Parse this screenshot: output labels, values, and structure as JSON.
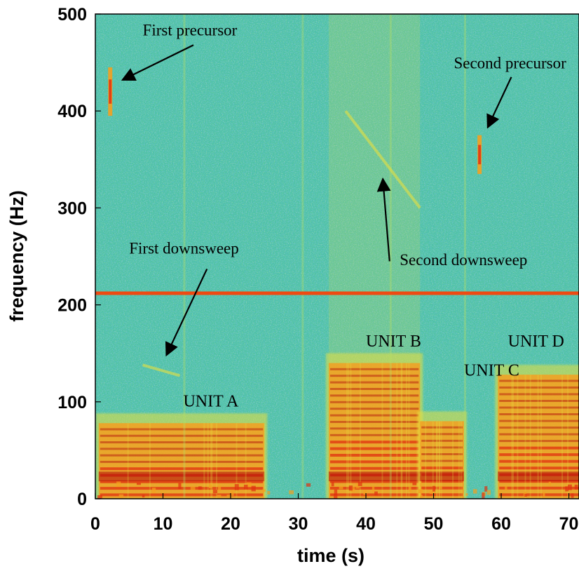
{
  "chart_data": {
    "type": "heatmap",
    "title": "",
    "xlabel": "time (s)",
    "ylabel": "frequency (Hz)",
    "xlim": [
      0,
      71.5
    ],
    "ylim": [
      0,
      500
    ],
    "xticks": [
      0,
      10,
      20,
      30,
      40,
      50,
      60,
      70
    ],
    "yticks": [
      0,
      100,
      200,
      300,
      400,
      500
    ],
    "xtick_labels": [
      "0",
      "10",
      "20",
      "30",
      "40",
      "50",
      "60",
      "70"
    ],
    "ytick_labels": [
      "0",
      "100",
      "200",
      "300",
      "400",
      "500"
    ],
    "grid": false,
    "colormap": "jet",
    "colors": {
      "background": "#4fc2a6",
      "noise_low": "#2f7fd0",
      "noise_mid": "#5ac8a0",
      "noise_high": "#b8e060",
      "energy_low": "#e8e040",
      "energy_mid": "#f4a020",
      "energy_high": "#e03010",
      "energy_peak": "#b00808",
      "tone_line": "#ee4a12"
    },
    "tone_line": {
      "frequency": 212
    },
    "units": [
      {
        "label": "UNIT A",
        "t_start": 0.5,
        "t_end": 25,
        "f_max": 78,
        "label_at": [
          13,
          95
        ]
      },
      {
        "label": "UNIT B",
        "t_start": 34.5,
        "t_end": 48,
        "f_max": 140,
        "label_at": [
          40,
          157
        ]
      },
      {
        "label": "UNIT C",
        "t_start": 48,
        "t_end": 54.5,
        "f_max": 80,
        "label_at": [
          54.5,
          127
        ]
      },
      {
        "label": "UNIT D",
        "t_start": 59.5,
        "t_end": 72,
        "f_max": 128,
        "label_at": [
          61,
          157
        ]
      }
    ],
    "annotations": [
      {
        "text": "First precursor",
        "text_at": [
          7,
          478
        ],
        "arrow_from": [
          14.5,
          468
        ],
        "arrow_to": [
          4,
          432
        ]
      },
      {
        "text": "Second precursor",
        "text_at": [
          53,
          444
        ],
        "arrow_from": [
          61.5,
          435
        ],
        "arrow_to": [
          58,
          383
        ]
      },
      {
        "text": "First downsweep",
        "text_at": [
          5,
          253
        ],
        "arrow_from": [
          16.5,
          237
        ],
        "arrow_to": [
          10.5,
          148
        ]
      },
      {
        "text": "Second downsweep",
        "text_at": [
          45,
          241
        ],
        "arrow_from": [
          43.5,
          245
        ],
        "arrow_to": [
          42.5,
          330
        ]
      }
    ],
    "precursors": [
      {
        "t": 2.2,
        "f_center": 420,
        "half_span": 25
      },
      {
        "t": 56.8,
        "f_center": 355,
        "half_span": 20
      }
    ],
    "downsweeps": [
      {
        "from": [
          7,
          138
        ],
        "to": [
          12.5,
          127
        ]
      },
      {
        "from": [
          37,
          400
        ],
        "to": [
          48,
          300
        ]
      }
    ]
  }
}
